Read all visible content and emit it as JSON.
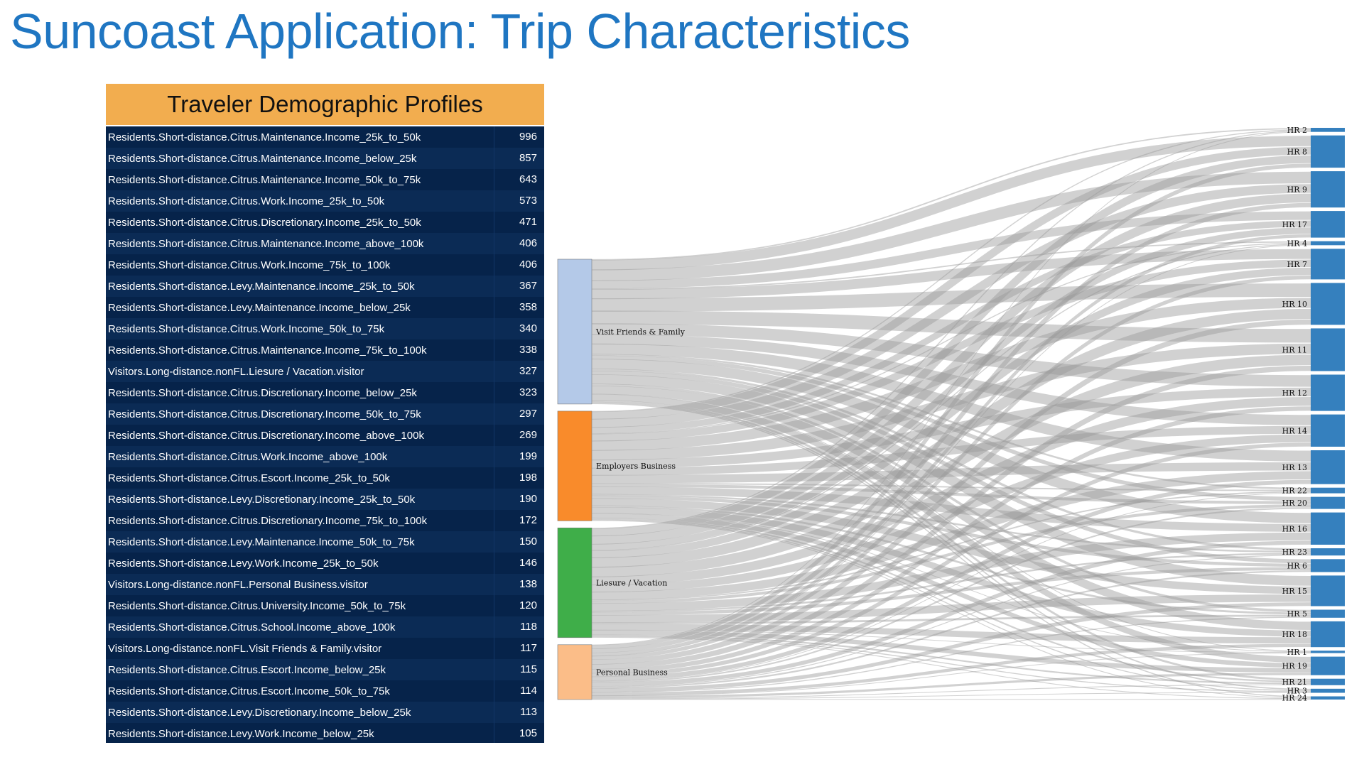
{
  "title": "Suncoast Application: Trip Characteristics",
  "profiles": {
    "header": "Traveler Demographic Profiles",
    "rows": [
      {
        "label": "Residents.Short-distance.Citrus.Maintenance.Income_25k_to_50k",
        "value": "996"
      },
      {
        "label": "Residents.Short-distance.Citrus.Maintenance.Income_below_25k",
        "value": "857"
      },
      {
        "label": "Residents.Short-distance.Citrus.Maintenance.Income_50k_to_75k",
        "value": "643"
      },
      {
        "label": "Residents.Short-distance.Citrus.Work.Income_25k_to_50k",
        "value": "573"
      },
      {
        "label": "Residents.Short-distance.Citrus.Discretionary.Income_25k_to_50k",
        "value": "471"
      },
      {
        "label": "Residents.Short-distance.Citrus.Maintenance.Income_above_100k",
        "value": "406"
      },
      {
        "label": "Residents.Short-distance.Citrus.Work.Income_75k_to_100k",
        "value": "406"
      },
      {
        "label": "Residents.Short-distance.Levy.Maintenance.Income_25k_to_50k",
        "value": "367"
      },
      {
        "label": "Residents.Short-distance.Levy.Maintenance.Income_below_25k",
        "value": "358"
      },
      {
        "label": "Residents.Short-distance.Citrus.Work.Income_50k_to_75k",
        "value": "340"
      },
      {
        "label": "Residents.Short-distance.Citrus.Maintenance.Income_75k_to_100k",
        "value": "338"
      },
      {
        "label": "Visitors.Long-distance.nonFL.Liesure / Vacation.visitor",
        "value": "327"
      },
      {
        "label": "Residents.Short-distance.Citrus.Discretionary.Income_below_25k",
        "value": "323"
      },
      {
        "label": "Residents.Short-distance.Citrus.Discretionary.Income_50k_to_75k",
        "value": "297"
      },
      {
        "label": "Residents.Short-distance.Citrus.Discretionary.Income_above_100k",
        "value": "269"
      },
      {
        "label": "Residents.Short-distance.Citrus.Work.Income_above_100k",
        "value": "199"
      },
      {
        "label": "Residents.Short-distance.Citrus.Escort.Income_25k_to_50k",
        "value": "198"
      },
      {
        "label": "Residents.Short-distance.Levy.Discretionary.Income_25k_to_50k",
        "value": "190"
      },
      {
        "label": "Residents.Short-distance.Citrus.Discretionary.Income_75k_to_100k",
        "value": "172"
      },
      {
        "label": "Residents.Short-distance.Levy.Maintenance.Income_50k_to_75k",
        "value": "150"
      },
      {
        "label": "Residents.Short-distance.Levy.Work.Income_25k_to_50k",
        "value": "146"
      },
      {
        "label": "Visitors.Long-distance.nonFL.Personal Business.visitor",
        "value": "138"
      },
      {
        "label": "Residents.Short-distance.Citrus.University.Income_50k_to_75k",
        "value": "120"
      },
      {
        "label": "Residents.Short-distance.Citrus.School.Income_above_100k",
        "value": "118"
      },
      {
        "label": "Visitors.Long-distance.nonFL.Visit Friends & Family.visitor",
        "value": "117"
      },
      {
        "label": "Residents.Short-distance.Citrus.Escort.Income_below_25k",
        "value": "115"
      },
      {
        "label": "Residents.Short-distance.Citrus.Escort.Income_50k_to_75k",
        "value": "114"
      },
      {
        "label": "Residents.Short-distance.Levy.Discretionary.Income_below_25k",
        "value": "113"
      },
      {
        "label": "Residents.Short-distance.Levy.Work.Income_below_25k",
        "value": "105"
      }
    ]
  },
  "sankey": {
    "sources": [
      {
        "name": "Visit Friends & Family",
        "color": "#b4c9e8",
        "weight": 0.33
      },
      {
        "name": "Employers Business",
        "color": "#f98b2b",
        "weight": 0.25
      },
      {
        "name": "Liesure / Vacation",
        "color": "#3fae49",
        "weight": 0.25
      },
      {
        "name": "Personal Business",
        "color": "#fbbd88",
        "weight": 0.125
      }
    ],
    "targets": [
      {
        "name": "HR 2",
        "weight": 0.5
      },
      {
        "name": "HR 8",
        "weight": 4
      },
      {
        "name": "HR 9",
        "weight": 4.5
      },
      {
        "name": "HR 17",
        "weight": 3.3
      },
      {
        "name": "HR 4",
        "weight": 0.5
      },
      {
        "name": "HR 7",
        "weight": 3.8
      },
      {
        "name": "HR 10",
        "weight": 5.2
      },
      {
        "name": "HR 11",
        "weight": 5.3
      },
      {
        "name": "HR 12",
        "weight": 4.5
      },
      {
        "name": "HR 14",
        "weight": 4
      },
      {
        "name": "HR 13",
        "weight": 4.2
      },
      {
        "name": "HR 22",
        "weight": 0.7
      },
      {
        "name": "HR 20",
        "weight": 1.5
      },
      {
        "name": "HR 16",
        "weight": 4
      },
      {
        "name": "HR 23",
        "weight": 0.9
      },
      {
        "name": "HR 6",
        "weight": 1.6
      },
      {
        "name": "HR 15",
        "weight": 3.8
      },
      {
        "name": "HR 5",
        "weight": 1
      },
      {
        "name": "HR 18",
        "weight": 3.2
      },
      {
        "name": "HR 1",
        "weight": 0.3
      },
      {
        "name": "HR 19",
        "weight": 2.3
      },
      {
        "name": "HR 21",
        "weight": 0.8
      },
      {
        "name": "HR 3",
        "weight": 0.5
      },
      {
        "name": "HR 24",
        "weight": 0.4
      }
    ],
    "target_color": "#3580be",
    "link_color": "#999999"
  }
}
